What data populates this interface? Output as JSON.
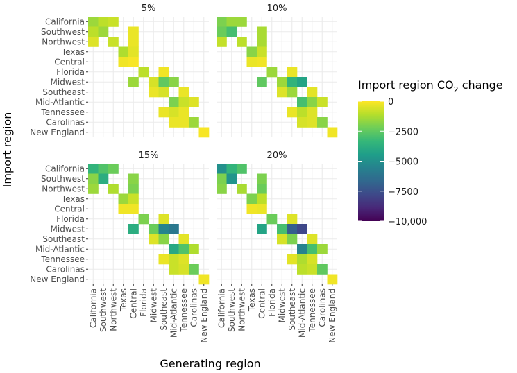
{
  "chart_data": {
    "type": "heatmap",
    "xlabel": "Generating region",
    "ylabel": "Import region",
    "regions": [
      "California",
      "Southwest",
      "Northwest",
      "Texas",
      "Central",
      "Florida",
      "Midwest",
      "Southeast",
      "Mid-Atlantic",
      "Tennessee",
      "Carolinas",
      "New England"
    ],
    "legend": {
      "title_main": "Import region CO",
      "title_sub": "2",
      "title_end": " change",
      "min": -10000,
      "max": 0,
      "ticks": [
        0,
        -2500,
        -5000,
        -7500,
        -10000
      ],
      "tick_labels": [
        "0",
        "−2500",
        "−5000",
        "−7500",
        "−10,000"
      ]
    },
    "facets": [
      {
        "label": "5%",
        "cells": [
          {
            "import": "California",
            "gen": "California",
            "value": -1500
          },
          {
            "import": "California",
            "gen": "Southwest",
            "value": -1000
          },
          {
            "import": "California",
            "gen": "Northwest",
            "value": -800
          },
          {
            "import": "Southwest",
            "gen": "California",
            "value": -1000
          },
          {
            "import": "Southwest",
            "gen": "Southwest",
            "value": -1500
          },
          {
            "import": "Southwest",
            "gen": "Central",
            "value": -300
          },
          {
            "import": "Northwest",
            "gen": "California",
            "value": -500
          },
          {
            "import": "Northwest",
            "gen": "Northwest",
            "value": -800
          },
          {
            "import": "Northwest",
            "gen": "Central",
            "value": -300
          },
          {
            "import": "Texas",
            "gen": "Texas",
            "value": -1200
          },
          {
            "import": "Texas",
            "gen": "Central",
            "value": -400
          },
          {
            "import": "Central",
            "gen": "Texas",
            "value": -200
          },
          {
            "import": "Central",
            "gen": "Central",
            "value": -100
          },
          {
            "import": "Florida",
            "gen": "Florida",
            "value": -1000
          },
          {
            "import": "Florida",
            "gen": "Southeast",
            "value": -200
          },
          {
            "import": "Midwest",
            "gen": "Central",
            "value": -1500
          },
          {
            "import": "Midwest",
            "gen": "Midwest",
            "value": -600
          },
          {
            "import": "Midwest",
            "gen": "Southeast",
            "value": -2500
          },
          {
            "import": "Midwest",
            "gen": "Mid-Atlantic",
            "value": -1800
          },
          {
            "import": "Southeast",
            "gen": "Midwest",
            "value": -300
          },
          {
            "import": "Southeast",
            "gen": "Southeast",
            "value": -600
          },
          {
            "import": "Southeast",
            "gen": "Tennessee",
            "value": -300
          },
          {
            "import": "Mid-Atlantic",
            "gen": "Mid-Atlantic",
            "value": -2000
          },
          {
            "import": "Mid-Atlantic",
            "gen": "Tennessee",
            "value": -800
          },
          {
            "import": "Mid-Atlantic",
            "gen": "Carolinas",
            "value": -500
          },
          {
            "import": "Tennessee",
            "gen": "Southeast",
            "value": -300
          },
          {
            "import": "Tennessee",
            "gen": "Mid-Atlantic",
            "value": -600
          },
          {
            "import": "Tennessee",
            "gen": "Tennessee",
            "value": -300
          },
          {
            "import": "Carolinas",
            "gen": "Mid-Atlantic",
            "value": -300
          },
          {
            "import": "Carolinas",
            "gen": "Tennessee",
            "value": -300
          },
          {
            "import": "Carolinas",
            "gen": "Carolinas",
            "value": -1500
          },
          {
            "import": "New England",
            "gen": "New England",
            "value": -100
          }
        ]
      },
      {
        "label": "10%",
        "cells": [
          {
            "import": "California",
            "gen": "California",
            "value": -2000
          },
          {
            "import": "California",
            "gen": "Southwest",
            "value": -1500
          },
          {
            "import": "California",
            "gen": "Northwest",
            "value": -1500
          },
          {
            "import": "Southwest",
            "gen": "California",
            "value": -2300
          },
          {
            "import": "Southwest",
            "gen": "Southwest",
            "value": -3000
          },
          {
            "import": "Southwest",
            "gen": "Central",
            "value": -1300
          },
          {
            "import": "Northwest",
            "gen": "California",
            "value": -900
          },
          {
            "import": "Northwest",
            "gen": "Northwest",
            "value": -1000
          },
          {
            "import": "Northwest",
            "gen": "Central",
            "value": -1300
          },
          {
            "import": "Texas",
            "gen": "Texas",
            "value": -1800
          },
          {
            "import": "Texas",
            "gen": "Central",
            "value": -800
          },
          {
            "import": "Central",
            "gen": "Texas",
            "value": -300
          },
          {
            "import": "Central",
            "gen": "Central",
            "value": -200
          },
          {
            "import": "Florida",
            "gen": "Florida",
            "value": -1500
          },
          {
            "import": "Florida",
            "gen": "Southeast",
            "value": -300
          },
          {
            "import": "Midwest",
            "gen": "Central",
            "value": -2500
          },
          {
            "import": "Midwest",
            "gen": "Midwest",
            "value": -1500
          },
          {
            "import": "Midwest",
            "gen": "Southeast",
            "value": -3500
          },
          {
            "import": "Midwest",
            "gen": "Mid-Atlantic",
            "value": -4200
          },
          {
            "import": "Southeast",
            "gen": "Midwest",
            "value": -500
          },
          {
            "import": "Southeast",
            "gen": "Southeast",
            "value": -1500
          },
          {
            "import": "Southeast",
            "gen": "Tennessee",
            "value": -400
          },
          {
            "import": "Mid-Atlantic",
            "gen": "Mid-Atlantic",
            "value": -3000
          },
          {
            "import": "Mid-Atlantic",
            "gen": "Tennessee",
            "value": -1800
          },
          {
            "import": "Mid-Atlantic",
            "gen": "Carolinas",
            "value": -800
          },
          {
            "import": "Tennessee",
            "gen": "Southeast",
            "value": -300
          },
          {
            "import": "Tennessee",
            "gen": "Mid-Atlantic",
            "value": -1000
          },
          {
            "import": "Tennessee",
            "gen": "Tennessee",
            "value": -500
          },
          {
            "import": "Carolinas",
            "gen": "Mid-Atlantic",
            "value": -600
          },
          {
            "import": "Carolinas",
            "gen": "Tennessee",
            "value": -500
          },
          {
            "import": "Carolinas",
            "gen": "Carolinas",
            "value": -1800
          },
          {
            "import": "New England",
            "gen": "New England",
            "value": -200
          }
        ]
      },
      {
        "label": "15%",
        "cells": [
          {
            "import": "California",
            "gen": "California",
            "value": -3500
          },
          {
            "import": "California",
            "gen": "Southwest",
            "value": -2800
          },
          {
            "import": "California",
            "gen": "Northwest",
            "value": -2300
          },
          {
            "import": "Southwest",
            "gen": "California",
            "value": -1800
          },
          {
            "import": "Southwest",
            "gen": "Southwest",
            "value": -3800
          },
          {
            "import": "Southwest",
            "gen": "Central",
            "value": -1800
          },
          {
            "import": "Northwest",
            "gen": "California",
            "value": -1500
          },
          {
            "import": "Northwest",
            "gen": "Northwest",
            "value": -1200
          },
          {
            "import": "Northwest",
            "gen": "Central",
            "value": -2000
          },
          {
            "import": "Texas",
            "gen": "Texas",
            "value": -1500
          },
          {
            "import": "Texas",
            "gen": "Central",
            "value": -800
          },
          {
            "import": "Central",
            "gen": "Texas",
            "value": -200
          },
          {
            "import": "Central",
            "gen": "Central",
            "value": -200
          },
          {
            "import": "Florida",
            "gen": "Florida",
            "value": -2000
          },
          {
            "import": "Florida",
            "gen": "Southeast",
            "value": -500
          },
          {
            "import": "Midwest",
            "gen": "Central",
            "value": -3800
          },
          {
            "import": "Midwest",
            "gen": "Midwest",
            "value": -2300
          },
          {
            "import": "Midwest",
            "gen": "Southeast",
            "value": -5500
          },
          {
            "import": "Midwest",
            "gen": "Mid-Atlantic",
            "value": -6000
          },
          {
            "import": "Southeast",
            "gen": "Midwest",
            "value": -500
          },
          {
            "import": "Southeast",
            "gen": "Southeast",
            "value": -1800
          },
          {
            "import": "Southeast",
            "gen": "Tennessee",
            "value": -400
          },
          {
            "import": "Mid-Atlantic",
            "gen": "Mid-Atlantic",
            "value": -4000
          },
          {
            "import": "Mid-Atlantic",
            "gen": "Tennessee",
            "value": -2800
          },
          {
            "import": "Mid-Atlantic",
            "gen": "Carolinas",
            "value": -1200
          },
          {
            "import": "Tennessee",
            "gen": "Southeast",
            "value": -300
          },
          {
            "import": "Tennessee",
            "gen": "Mid-Atlantic",
            "value": -800
          },
          {
            "import": "Tennessee",
            "gen": "Tennessee",
            "value": -500
          },
          {
            "import": "Carolinas",
            "gen": "Mid-Atlantic",
            "value": -800
          },
          {
            "import": "Carolinas",
            "gen": "Tennessee",
            "value": -600
          },
          {
            "import": "Carolinas",
            "gen": "Carolinas",
            "value": -2300
          },
          {
            "import": "New England",
            "gen": "New England",
            "value": -200
          }
        ]
      },
      {
        "label": "20%",
        "cells": [
          {
            "import": "California",
            "gen": "California",
            "value": -5000
          },
          {
            "import": "California",
            "gen": "Southwest",
            "value": -3500
          },
          {
            "import": "California",
            "gen": "Northwest",
            "value": -2800
          },
          {
            "import": "Southwest",
            "gen": "California",
            "value": -2000
          },
          {
            "import": "Southwest",
            "gen": "Southwest",
            "value": -4800
          },
          {
            "import": "Southwest",
            "gen": "Central",
            "value": -2000
          },
          {
            "import": "Northwest",
            "gen": "California",
            "value": -1800
          },
          {
            "import": "Northwest",
            "gen": "Northwest",
            "value": -1300
          },
          {
            "import": "Northwest",
            "gen": "Central",
            "value": -2300
          },
          {
            "import": "Texas",
            "gen": "Texas",
            "value": -2000
          },
          {
            "import": "Texas",
            "gen": "Central",
            "value": -1000
          },
          {
            "import": "Central",
            "gen": "Texas",
            "value": -200
          },
          {
            "import": "Central",
            "gen": "Central",
            "value": -300
          },
          {
            "import": "Florida",
            "gen": "Florida",
            "value": -2300
          },
          {
            "import": "Florida",
            "gen": "Southeast",
            "value": -500
          },
          {
            "import": "Midwest",
            "gen": "Central",
            "value": -4200
          },
          {
            "import": "Midwest",
            "gen": "Midwest",
            "value": -3000
          },
          {
            "import": "Midwest",
            "gen": "Southeast",
            "value": -7000
          },
          {
            "import": "Midwest",
            "gen": "Mid-Atlantic",
            "value": -7800
          },
          {
            "import": "Southeast",
            "gen": "Midwest",
            "value": -600
          },
          {
            "import": "Southeast",
            "gen": "Southeast",
            "value": -2000
          },
          {
            "import": "Southeast",
            "gen": "Tennessee",
            "value": -500
          },
          {
            "import": "Mid-Atlantic",
            "gen": "Mid-Atlantic",
            "value": -5500
          },
          {
            "import": "Mid-Atlantic",
            "gen": "Tennessee",
            "value": -3000
          },
          {
            "import": "Mid-Atlantic",
            "gen": "Carolinas",
            "value": -1500
          },
          {
            "import": "Tennessee",
            "gen": "Southeast",
            "value": -400
          },
          {
            "import": "Tennessee",
            "gen": "Mid-Atlantic",
            "value": -1200
          },
          {
            "import": "Tennessee",
            "gen": "Tennessee",
            "value": -600
          },
          {
            "import": "Carolinas",
            "gen": "Mid-Atlantic",
            "value": -1000
          },
          {
            "import": "Carolinas",
            "gen": "Tennessee",
            "value": -800
          },
          {
            "import": "Carolinas",
            "gen": "Carolinas",
            "value": -2500
          },
          {
            "import": "New England",
            "gen": "New England",
            "value": -200
          }
        ]
      }
    ]
  }
}
